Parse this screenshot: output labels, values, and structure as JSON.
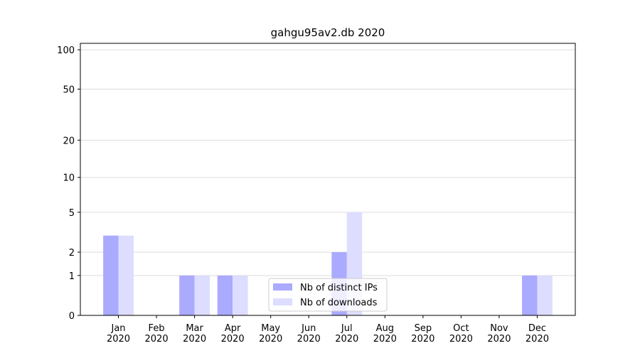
{
  "chart_data": {
    "type": "bar",
    "title": "gahgu95av2.db 2020",
    "categories": [
      "Jan\n2020",
      "Feb\n2020",
      "Mar\n2020",
      "Apr\n2020",
      "May\n2020",
      "Jun\n2020",
      "Jul\n2020",
      "Aug\n2020",
      "Sep\n2020",
      "Oct\n2020",
      "Nov\n2020",
      "Dec\n2020"
    ],
    "series": [
      {
        "name": "Nb of distinct IPs",
        "color": "#aaaaff",
        "values": [
          3,
          0,
          1,
          1,
          0,
          0,
          2,
          0,
          0,
          0,
          0,
          1
        ]
      },
      {
        "name": "Nb of downloads",
        "color": "#ddddff",
        "values": [
          3,
          0,
          1,
          1,
          0,
          0,
          5,
          0,
          0,
          0,
          0,
          1
        ]
      }
    ],
    "yscale": "log1p",
    "ylim": [
      0,
      112
    ],
    "yticks": [
      0,
      1,
      2,
      5,
      10,
      20,
      50,
      100
    ],
    "grid": true,
    "legend": "lower center"
  }
}
